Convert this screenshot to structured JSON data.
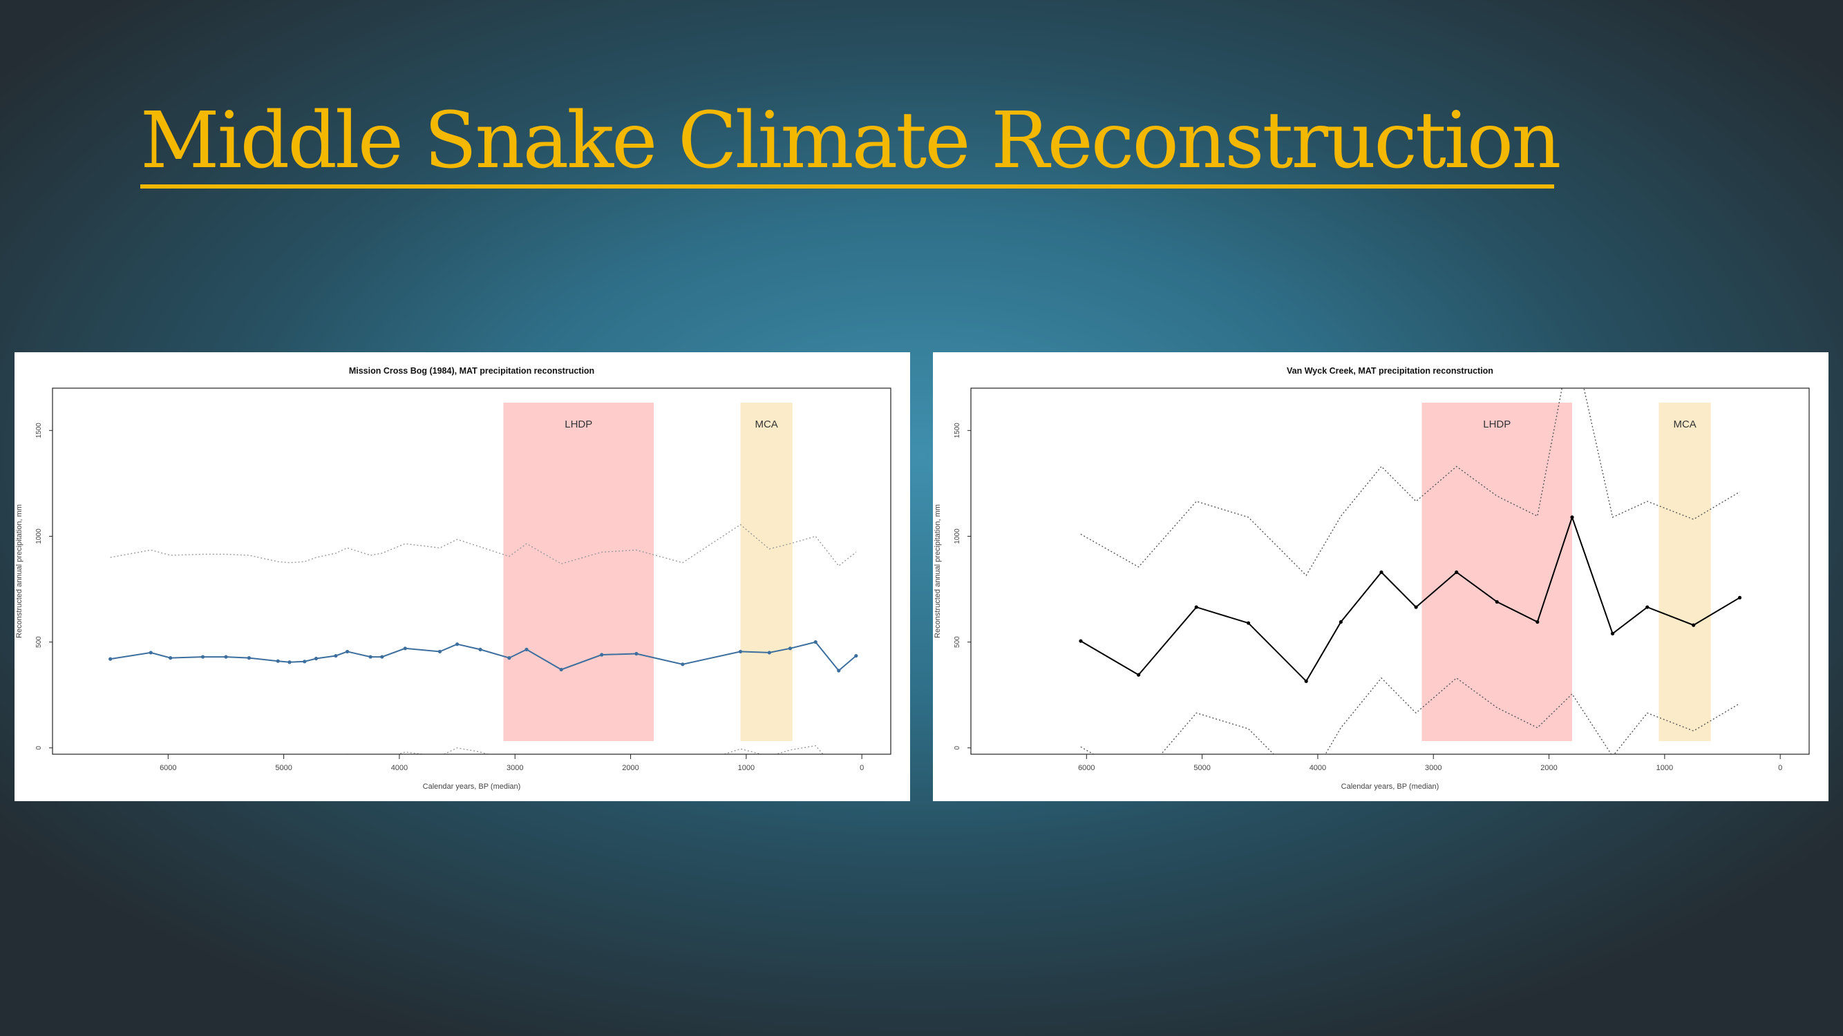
{
  "slide": {
    "title": "Middle Snake Climate Reconstruction",
    "title_color": "#f5b800"
  },
  "chart_data": [
    {
      "type": "line",
      "title": "Mission Cross Bog (1984), MAT precipitation reconstruction",
      "xlabel": "Calendar years, BP (median)",
      "ylabel": "Reconstructed annual precipitation, mm",
      "x_reversed": true,
      "xlim": [
        7000,
        -250
      ],
      "ylim": [
        -30,
        1700
      ],
      "x_ticks": [
        6000,
        5000,
        4000,
        3000,
        2000,
        1000,
        0
      ],
      "y_ticks": [
        0,
        500,
        1000,
        1500
      ],
      "grid": false,
      "legend": "none",
      "shaded_periods": [
        {
          "label": "LHDP",
          "start": 3100,
          "end": 1800,
          "color": "#ffcccc"
        },
        {
          "label": "MCA",
          "start": 1050,
          "end": 600,
          "color": "#fcebc9"
        }
      ],
      "series": [
        {
          "role": "estimate",
          "style": "solid-points",
          "color": "#3c6e9e",
          "x": [
            6500,
            6150,
            5980,
            5700,
            5500,
            5300,
            5050,
            4950,
            4820,
            4720,
            4550,
            4450,
            4250,
            4150,
            3950,
            3650,
            3500,
            3300,
            3050,
            2900,
            2600,
            2250,
            1950,
            1550,
            1050,
            800,
            620,
            400,
            200,
            50
          ],
          "y": [
            420,
            450,
            425,
            430,
            430,
            425,
            410,
            405,
            408,
            422,
            435,
            455,
            430,
            430,
            470,
            455,
            490,
            465,
            425,
            465,
            370,
            440,
            445,
            395,
            455,
            450,
            470,
            500,
            365,
            435
          ]
        },
        {
          "role": "upper-bound",
          "style": "dotted",
          "color": "#999999",
          "x": [
            6500,
            6150,
            5980,
            5700,
            5500,
            5300,
            5050,
            4950,
            4820,
            4720,
            4550,
            4450,
            4250,
            4150,
            3950,
            3650,
            3500,
            3300,
            3050,
            2900,
            2600,
            2250,
            1950,
            1550,
            1050,
            800,
            620,
            400,
            200,
            50
          ],
          "y": [
            900,
            935,
            910,
            915,
            915,
            910,
            880,
            875,
            880,
            900,
            920,
            945,
            910,
            920,
            965,
            945,
            985,
            950,
            905,
            965,
            870,
            925,
            935,
            875,
            1055,
            940,
            965,
            1000,
            860,
            925
          ]
        },
        {
          "role": "lower-bound",
          "style": "dotted",
          "color": "#999999",
          "x": [
            6500,
            6150,
            5980,
            5700,
            5500,
            5300,
            5050,
            4950,
            4820,
            4720,
            4550,
            4450,
            4250,
            4150,
            3950,
            3650,
            3500,
            3300,
            3050,
            2900,
            2600,
            2250,
            1950,
            1550,
            1050,
            800,
            620,
            400,
            200,
            50
          ],
          "y": [
            -60,
            -35,
            -55,
            -50,
            -50,
            -55,
            -75,
            -80,
            -75,
            -65,
            -45,
            -30,
            -55,
            -55,
            -20,
            -40,
            0,
            -20,
            -60,
            -30,
            -105,
            -45,
            -40,
            -95,
            -5,
            -40,
            -10,
            10,
            -115,
            -50
          ]
        }
      ]
    },
    {
      "type": "line",
      "title": "Van Wyck Creek, MAT precipitation reconstruction",
      "xlabel": "Calendar years, BP (median)",
      "ylabel": "Reconstructed annual precipitation, mm",
      "x_reversed": true,
      "xlim": [
        7000,
        -250
      ],
      "ylim": [
        -30,
        1700
      ],
      "x_ticks": [
        6000,
        5000,
        4000,
        3000,
        2000,
        1000,
        0
      ],
      "y_ticks": [
        0,
        500,
        1000,
        1500
      ],
      "grid": false,
      "legend": "none",
      "shaded_periods": [
        {
          "label": "LHDP",
          "start": 3100,
          "end": 1800,
          "color": "#ffcccc"
        },
        {
          "label": "MCA",
          "start": 1050,
          "end": 600,
          "color": "#fcebc9"
        }
      ],
      "series": [
        {
          "role": "estimate",
          "style": "solid-points",
          "color": "#000000",
          "x": [
            6050,
            5550,
            5050,
            4600,
            4100,
            3800,
            3450,
            3150,
            2800,
            2450,
            2100,
            1800,
            1450,
            1150,
            750,
            350
          ],
          "y": [
            505,
            345,
            665,
            590,
            315,
            595,
            830,
            665,
            830,
            690,
            595,
            1090,
            540,
            665,
            580,
            710
          ]
        },
        {
          "role": "upper-bound",
          "style": "dotted",
          "color": "#555555",
          "x": [
            6050,
            5550,
            5050,
            4600,
            4100,
            3800,
            3450,
            3150,
            2800,
            2450,
            2100,
            1800,
            1450,
            1150,
            750,
            350
          ],
          "y": [
            1010,
            855,
            1165,
            1090,
            815,
            1095,
            1330,
            1165,
            1330,
            1190,
            1095,
            1950,
            1090,
            1165,
            1080,
            1210
          ]
        },
        {
          "role": "lower-bound",
          "style": "dotted",
          "color": "#555555",
          "x": [
            6050,
            5550,
            5050,
            4600,
            4100,
            3800,
            3450,
            3150,
            2800,
            2450,
            2100,
            1800,
            1450,
            1150,
            750,
            350
          ],
          "y": [
            5,
            -155,
            165,
            90,
            -185,
            95,
            330,
            165,
            330,
            190,
            95,
            255,
            -40,
            165,
            80,
            210
          ]
        }
      ]
    }
  ]
}
